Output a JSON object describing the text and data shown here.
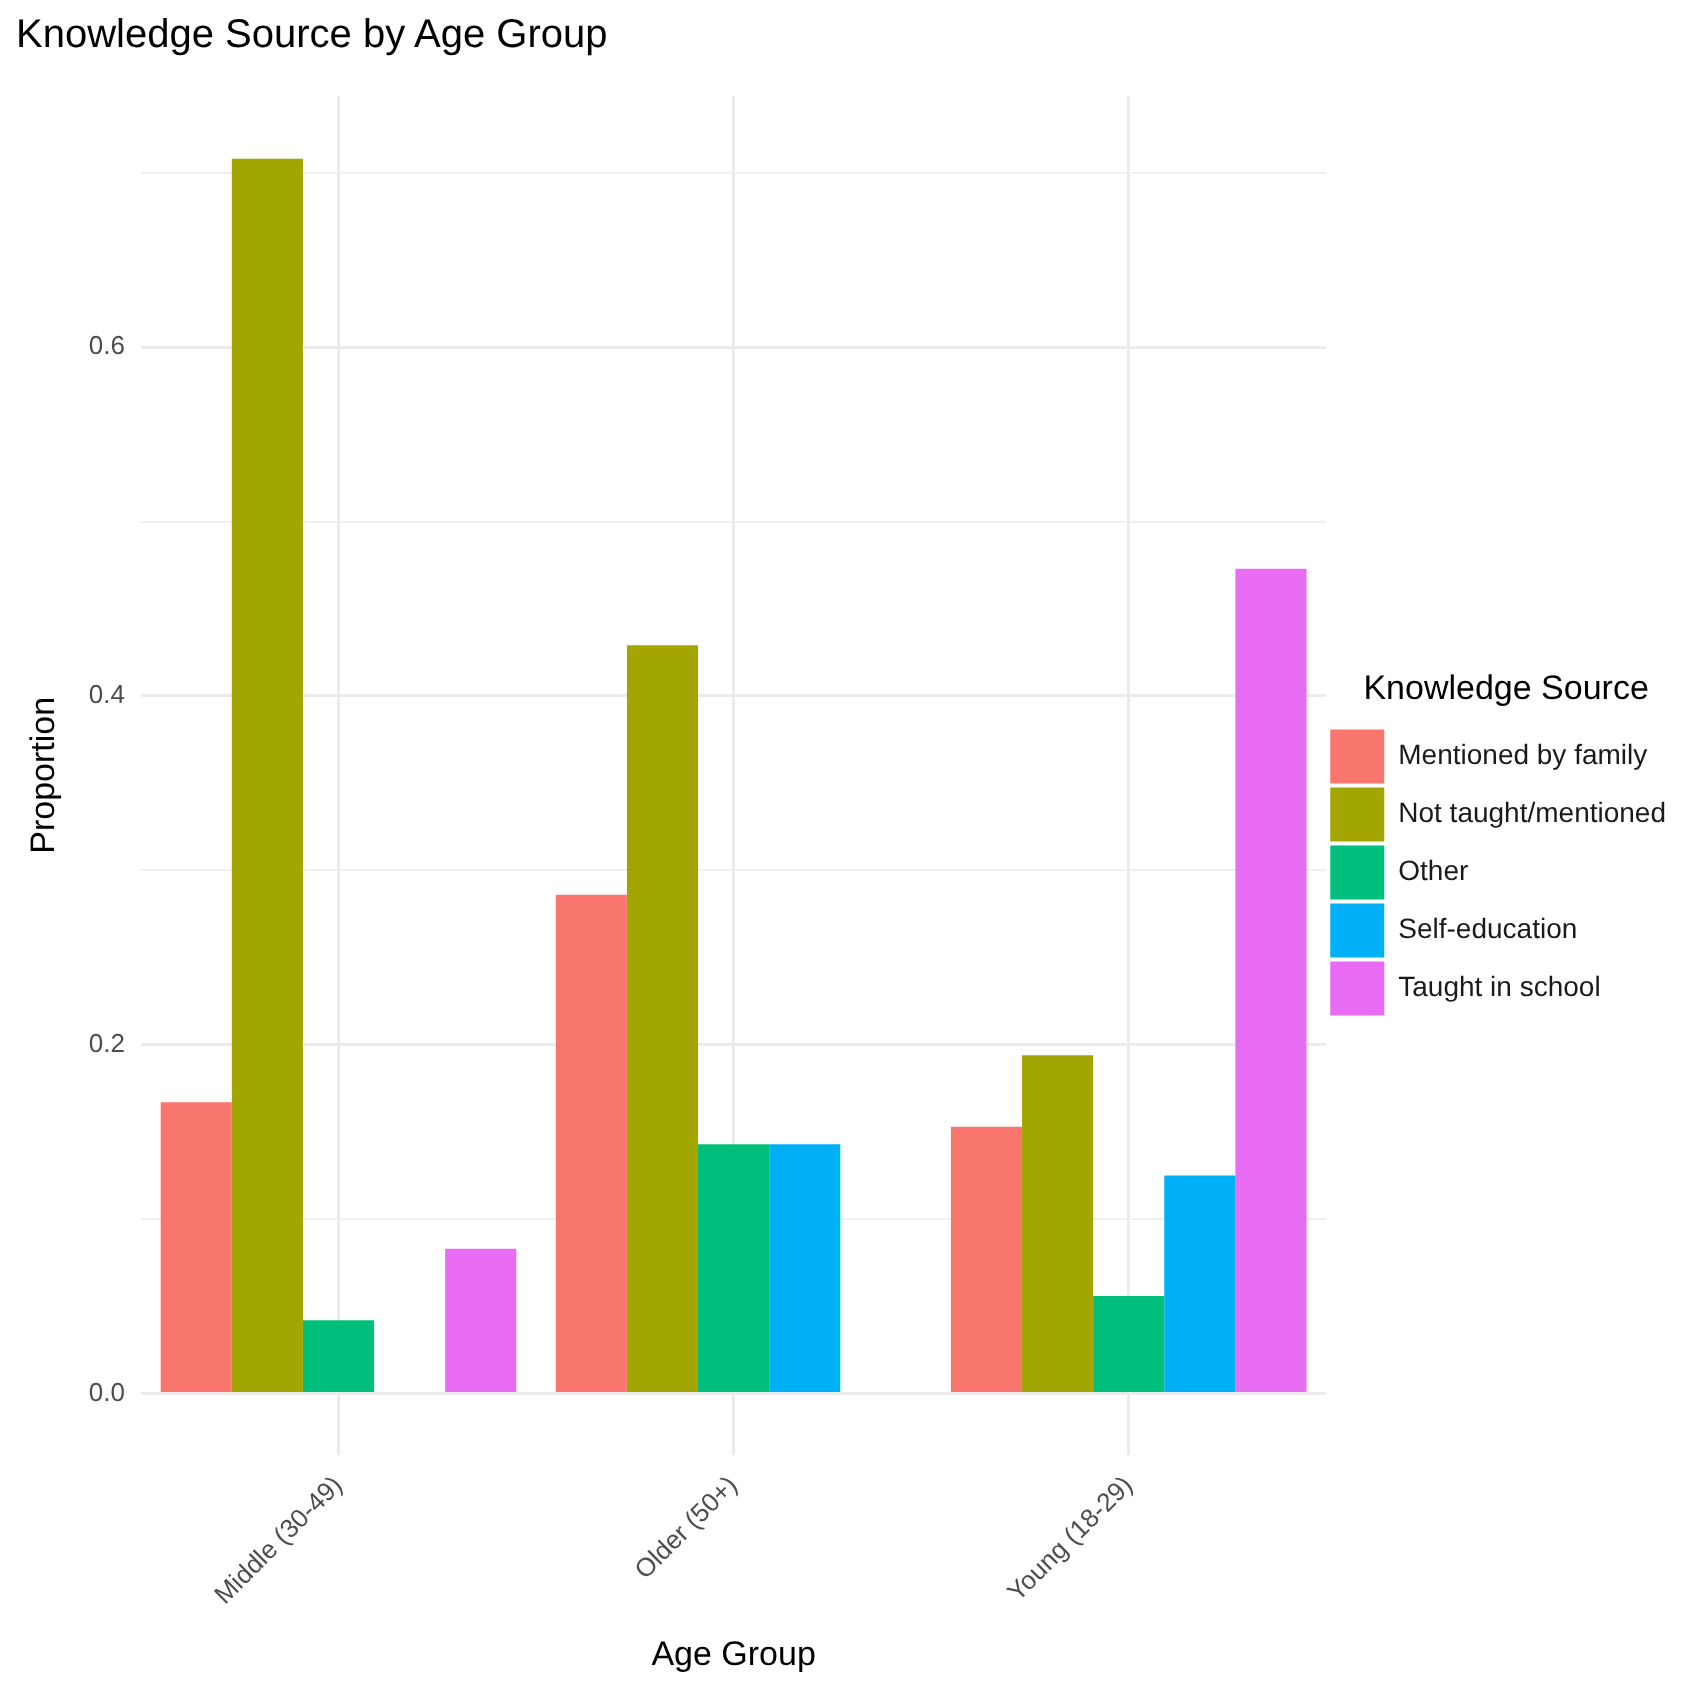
{
  "chart_data": {
    "type": "bar",
    "title": "Knowledge Source by Age Group",
    "xlabel": "Age Group",
    "ylabel": "Proportion",
    "legend_title": "Knowledge Source",
    "categories": [
      "Middle (30-49)",
      "Older (50+)",
      "Young (18-29)"
    ],
    "series": [
      {
        "name": "Mentioned by family",
        "color": "#f8766d",
        "values": [
          0.167,
          0.286,
          0.153
        ]
      },
      {
        "name": "Not taught/mentioned",
        "color": "#a3a500",
        "values": [
          0.708,
          0.429,
          0.194
        ]
      },
      {
        "name": "Other",
        "color": "#00bf7d",
        "values": [
          0.042,
          0.143,
          0.056
        ]
      },
      {
        "name": "Self-education",
        "color": "#00b0f6",
        "values": [
          null,
          0.143,
          0.125
        ]
      },
      {
        "name": "Taught in school",
        "color": "#e76bf3",
        "values": [
          0.083,
          null,
          0.473
        ]
      }
    ],
    "ylim": [
      -0.035,
      0.744
    ],
    "yticks": [
      {
        "value": 0,
        "label": "0.0"
      },
      {
        "value": 0.1,
        "label": null
      },
      {
        "value": 0.2,
        "label": "0.2"
      },
      {
        "value": 0.3,
        "label": null
      },
      {
        "value": 0.4,
        "label": "0.4"
      },
      {
        "value": 0.5,
        "label": null
      },
      {
        "value": 0.6,
        "label": "0.6"
      },
      {
        "value": 0.7,
        "label": null
      }
    ],
    "grid": true,
    "legend": "right"
  }
}
